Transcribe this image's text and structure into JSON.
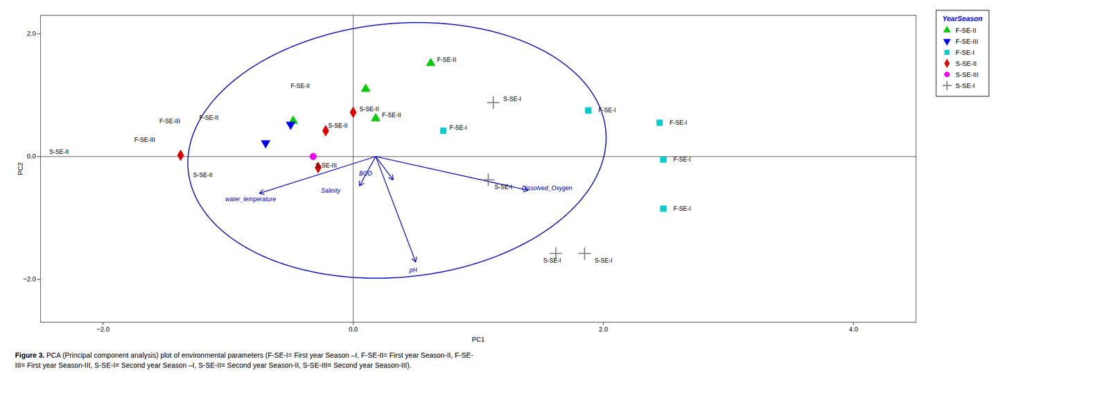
{
  "chart_data": {
    "type": "scatter",
    "xlabel": "PC1",
    "ylabel": "PC2",
    "xlim": [
      -2.5,
      4.5
    ],
    "ylim": [
      -2.7,
      2.3
    ],
    "xticks": [
      -2,
      0,
      2,
      4
    ],
    "yticks": [
      -2,
      0,
      2
    ],
    "grid": false,
    "legend": "upper right",
    "legend_title": "YearSeason",
    "series": [
      {
        "name": "F-SE-II",
        "color": "#00CC00",
        "marker": "triangle-up",
        "x": [
          0.62,
          0.1,
          0.18,
          -0.48
        ],
        "y": [
          1.52,
          1.1,
          0.62,
          0.58
        ]
      },
      {
        "name": "F-SE-III",
        "color": "#0000EE",
        "marker": "triangle-down",
        "x": [
          -0.5,
          -0.7
        ],
        "y": [
          0.52,
          0.22
        ]
      },
      {
        "name": "F-SE-I",
        "color": "#00CCCC",
        "marker": "square",
        "x": [
          0.72,
          1.88,
          2.45,
          2.48,
          2.48
        ],
        "y": [
          0.42,
          0.75,
          0.55,
          -0.05,
          -0.85
        ]
      },
      {
        "name": "S-SE-II",
        "color": "#DD0000",
        "marker": "diamond",
        "x": [
          -1.38,
          -0.22,
          -0.28,
          0.0
        ],
        "y": [
          0.02,
          0.42,
          -0.18,
          0.72
        ]
      },
      {
        "name": "S-SE-III",
        "color": "#EE00EE",
        "marker": "circle",
        "x": [
          -0.32
        ],
        "y": [
          0.0
        ]
      },
      {
        "name": "S-SE-I",
        "color": "#777777",
        "marker": "plus",
        "x": [
          1.12,
          1.08,
          1.62,
          1.85
        ],
        "y": [
          0.88,
          -0.38,
          -1.58,
          -1.58
        ]
      }
    ],
    "ellipse": {
      "cx": 0.35,
      "cy": 0.1,
      "rx": 1.65,
      "ry": 2.1,
      "angle": -12,
      "color": "#0000BB"
    },
    "arrow_color": "#0000BB",
    "arrow_origin": [
      0.18,
      0.0
    ],
    "arrows": [
      {
        "label": "water_temperature",
        "x": -0.75,
        "y": -0.6,
        "label_x": -0.82,
        "label_y": -0.7
      },
      {
        "label": "BOD",
        "x": 0.32,
        "y": -0.38,
        "label_x": 0.1,
        "label_y": -0.28
      },
      {
        "label": "Salinity",
        "x": 0.05,
        "y": -0.48,
        "label_x": -0.18,
        "label_y": -0.56
      },
      {
        "label": "Dissolved_Oxygen",
        "x": 1.4,
        "y": -0.55,
        "label_x": 1.55,
        "label_y": -0.52
      },
      {
        "label": "pH",
        "x": 0.5,
        "y": -1.72,
        "label_x": 0.48,
        "label_y": -1.85
      }
    ],
    "annotations": [
      {
        "text": "F-SE-II",
        "x": 0.67,
        "y": 1.57
      },
      {
        "text": "F-SE-II",
        "x": -0.5,
        "y": 1.15
      },
      {
        "text": "F-SE-II",
        "x": 0.23,
        "y": 0.67
      },
      {
        "text": "F-SE-II",
        "x": -1.23,
        "y": 0.63
      },
      {
        "text": "F-SE-III",
        "x": -1.55,
        "y": 0.57
      },
      {
        "text": "F-SE-III",
        "x": -1.75,
        "y": 0.27
      },
      {
        "text": "F-SE-I",
        "x": 0.77,
        "y": 0.47
      },
      {
        "text": "F-SE-I",
        "x": 1.96,
        "y": 0.75
      },
      {
        "text": "F-SE-I",
        "x": 2.53,
        "y": 0.55
      },
      {
        "text": "F-SE-I",
        "x": 2.56,
        "y": -0.05
      },
      {
        "text": "F-SE-I",
        "x": 2.56,
        "y": -0.85
      },
      {
        "text": "S-SE-II",
        "x": -2.43,
        "y": 0.07
      },
      {
        "text": "S-SE-II",
        "x": -0.2,
        "y": 0.5
      },
      {
        "text": "S-SE-II",
        "x": -1.28,
        "y": -0.3
      },
      {
        "text": "S-SE-II",
        "x": 0.05,
        "y": 0.77
      },
      {
        "text": "S-SE-III",
        "x": -0.3,
        "y": -0.15
      },
      {
        "text": "S-SE-I",
        "x": 1.2,
        "y": 0.93
      },
      {
        "text": "S-SE-I",
        "x": 1.13,
        "y": -0.5
      },
      {
        "text": "S-SE-I",
        "x": 1.52,
        "y": -1.7
      },
      {
        "text": "S-SE-I",
        "x": 1.93,
        "y": -1.7
      }
    ],
    "caption": [
      "Figure 3. PCA (Principal component analysis) plot of environmental parameters (F-SE-I= First year Season –I, F-SE-II= First year Season-II, F-SE-",
      "III= First year Season-III, S-SE-I= Second year Season –I, S-SE-II= Second year Season-II, S-SE-III= Second year Season-III)."
    ]
  }
}
